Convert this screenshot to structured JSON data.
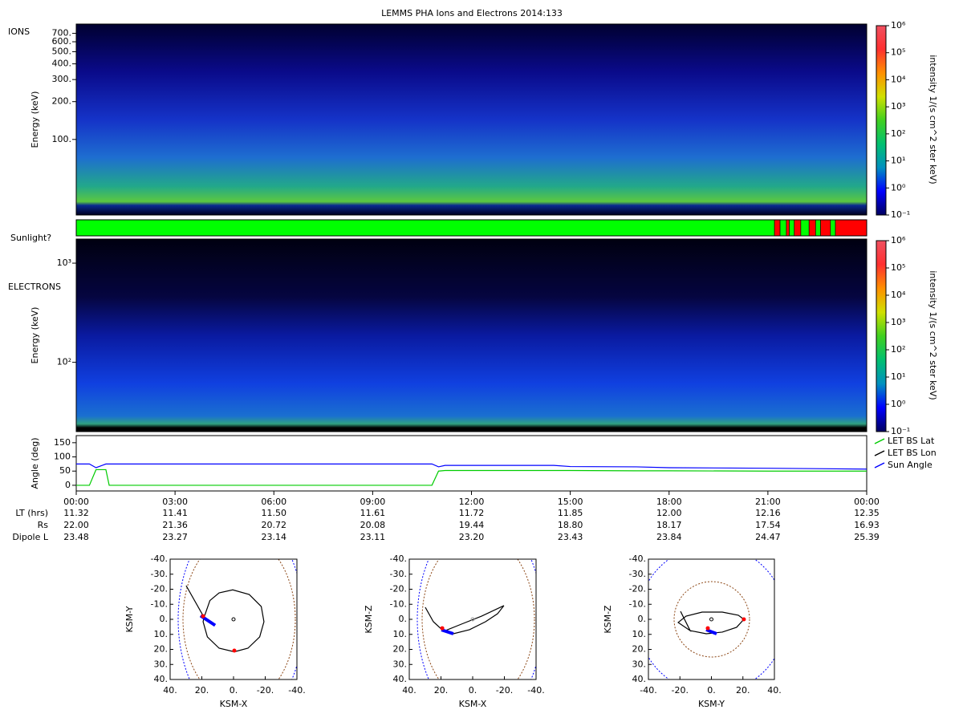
{
  "chart_data": [
    {
      "type": "heatmap",
      "title": "LEMMS PHA Ions and Electrons  2014:133",
      "label": "IONS",
      "ylabel": "Energy (keV)",
      "log_y": true,
      "ylim": [
        25,
        830
      ],
      "yticks": [
        {
          "value": 100,
          "label": "100."
        },
        {
          "value": 200,
          "label": "200."
        },
        {
          "value": 300,
          "label": "300."
        },
        {
          "value": 400,
          "label": "400."
        },
        {
          "value": 500,
          "label": "500."
        },
        {
          "value": 600,
          "label": "600."
        },
        {
          "value": 700,
          "label": "700."
        }
      ],
      "clabel": "intensity 1/(s cm^2 ster keV)",
      "clim": [
        0.1,
        1000000
      ],
      "cticks": [
        {
          "value": 0.1,
          "label": "10⁻¹"
        },
        {
          "value": 1,
          "label": "10⁰"
        },
        {
          "value": 10,
          "label": "10¹"
        },
        {
          "value": 100,
          "label": "10²"
        },
        {
          "value": 1000,
          "label": "10³"
        },
        {
          "value": 10000,
          "label": "10⁴"
        },
        {
          "value": 100000,
          "label": "10⁵"
        },
        {
          "value": 1000000,
          "label": "10⁶"
        }
      ],
      "colormap": [
        "#000060",
        "#0000ff",
        "#0090c0",
        "#00c070",
        "#40d020",
        "#d0e000",
        "#ff9000",
        "#ff3030",
        "#f05060"
      ]
    },
    {
      "type": "timeline",
      "label": "Sunlight?",
      "xlim": [
        0,
        24
      ],
      "segments": [
        {
          "start": 0,
          "end": 21.2,
          "color": "#00ff00"
        },
        {
          "start": 21.2,
          "end": 21.37,
          "color": "#ff0000"
        },
        {
          "start": 21.37,
          "end": 21.56,
          "color": "#00ff00"
        },
        {
          "start": 21.56,
          "end": 21.65,
          "color": "#ff0000"
        },
        {
          "start": 21.65,
          "end": 21.8,
          "color": "#00ff00"
        },
        {
          "start": 21.8,
          "end": 22.0,
          "color": "#ff0000"
        },
        {
          "start": 22.0,
          "end": 22.25,
          "color": "#00ff00"
        },
        {
          "start": 22.25,
          "end": 22.45,
          "color": "#ff0000"
        },
        {
          "start": 22.45,
          "end": 22.6,
          "color": "#00ff00"
        },
        {
          "start": 22.6,
          "end": 22.9,
          "color": "#ff0000"
        },
        {
          "start": 22.9,
          "end": 23.05,
          "color": "#00ff00"
        },
        {
          "start": 23.05,
          "end": 24,
          "color": "#ff0000"
        }
      ]
    },
    {
      "type": "heatmap",
      "label": "ELECTRONS",
      "ylabel": "Energy (keV)",
      "log_y": true,
      "ylim": [
        20,
        1750
      ],
      "yticks": [
        {
          "value": 100,
          "label": "10²"
        },
        {
          "value": 1000,
          "label": "10³"
        }
      ],
      "clabel": "intensity 1/(s cm^2 ster keV)",
      "clim": [
        0.1,
        1000000
      ],
      "cticks": [
        {
          "value": 0.1,
          "label": "10⁻¹"
        },
        {
          "value": 1,
          "label": "10⁰"
        },
        {
          "value": 10,
          "label": "10¹"
        },
        {
          "value": 100,
          "label": "10²"
        },
        {
          "value": 1000,
          "label": "10³"
        },
        {
          "value": 10000,
          "label": "10⁴"
        },
        {
          "value": 100000,
          "label": "10⁵"
        },
        {
          "value": 1000000,
          "label": "10⁶"
        }
      ],
      "colormap": [
        "#000060",
        "#0000ff",
        "#0090c0",
        "#00c070",
        "#40d020",
        "#d0e000",
        "#ff9000",
        "#ff3030",
        "#f05060"
      ]
    },
    {
      "type": "line",
      "ylabel": "Angle (deg)",
      "xlim": [
        0,
        24
      ],
      "ylim": [
        -20,
        175
      ],
      "yticks": [
        0,
        50,
        100,
        150
      ],
      "xticks": [
        {
          "value": 0,
          "label": "00:00"
        },
        {
          "value": 3,
          "label": "03:00"
        },
        {
          "value": 6,
          "label": "06:00"
        },
        {
          "value": 9,
          "label": "09:00"
        },
        {
          "value": 12,
          "label": "12:00"
        },
        {
          "value": 15,
          "label": "15:00"
        },
        {
          "value": 18,
          "label": "18:00"
        },
        {
          "value": 21,
          "label": "21:00"
        },
        {
          "value": 24,
          "label": "00:00"
        }
      ],
      "x": [
        0,
        0.4,
        0.6,
        0.9,
        1.0,
        10.8,
        11.0,
        11.2,
        14.5,
        15,
        17,
        18,
        21,
        24
      ],
      "series": [
        {
          "name": "LET BS Lat",
          "color": "#00cc00",
          "values": [
            0,
            0,
            55,
            55,
            0,
            0,
            50,
            52,
            52,
            52,
            51,
            51,
            50,
            50
          ]
        },
        {
          "name": "LET BS Lon",
          "color": "#000000",
          "values": [
            null,
            null,
            null,
            null,
            null,
            null,
            null,
            null,
            null,
            null,
            null,
            null,
            null,
            null
          ]
        },
        {
          "name": "Sun Angle",
          "color": "#0000ff",
          "values": [
            75,
            75,
            62,
            75,
            75,
            75,
            65,
            70,
            70,
            66,
            65,
            62,
            60,
            57
          ]
        }
      ],
      "ephemeris": [
        {
          "label": "LT (hrs)",
          "values": [
            "11.32",
            "11.41",
            "11.50",
            "11.61",
            "11.72",
            "11.85",
            "12.00",
            "12.16",
            "12.35"
          ]
        },
        {
          "label": "Rs",
          "values": [
            "22.00",
            "21.36",
            "20.72",
            "20.08",
            "19.44",
            "18.80",
            "18.17",
            "17.54",
            "16.93"
          ]
        },
        {
          "label": "Dipole L",
          "values": [
            "23.48",
            "23.27",
            "23.14",
            "23.11",
            "23.20",
            "23.43",
            "23.84",
            "24.47",
            "25.39"
          ]
        }
      ]
    },
    {
      "type": "orbit",
      "xlabel": "KSM-X",
      "ylabel": "KSM-Y",
      "xlim": [
        40,
        -40
      ],
      "ylim": [
        -40,
        40
      ],
      "xticks": [
        {
          "value": 40,
          "label": "40."
        },
        {
          "value": 20,
          "label": "20."
        },
        {
          "value": 0,
          "label": "0."
        },
        {
          "value": -20,
          "label": "-20."
        },
        {
          "value": -40,
          "label": "-40."
        }
      ],
      "yticks": [
        {
          "value": -40,
          "label": "-40."
        },
        {
          "value": -30,
          "label": "-30."
        },
        {
          "value": -20,
          "label": "-20."
        },
        {
          "value": -10,
          "label": "-10."
        },
        {
          "value": 0,
          "label": "0."
        },
        {
          "value": 10,
          "label": "10."
        },
        {
          "value": 20,
          "label": "20."
        },
        {
          "value": 30,
          "label": "30."
        },
        {
          "value": 40,
          "label": "40."
        }
      ],
      "series": [
        {
          "mode": "line",
          "color": "#000000",
          "x": [
            29.9,
            18.6,
            14.9,
            9.1,
            0.5,
            -9.9,
            -17.5,
            -19.2,
            -16.5,
            -9.1,
            -0.5,
            9.1,
            16.5,
            19.2,
            18.6
          ],
          "y": [
            -22.4,
            -1.3,
            -12.5,
            -17.6,
            -19.6,
            -16.5,
            -8.5,
            1.6,
            11.7,
            19.2,
            21.6,
            19.2,
            11.7,
            1.6,
            -1.3
          ]
        },
        {
          "mode": "thick",
          "color": "#0000ff",
          "x": [
            20.8,
            11.6
          ],
          "y": [
            -2.4,
            4.0
          ]
        },
        {
          "mode": "points",
          "color": "#ff0000",
          "x": [
            19.2,
            -0.5
          ],
          "y": [
            -2.1,
            20.8
          ]
        },
        {
          "mode": "circle",
          "color": "#000000",
          "x": [
            0
          ],
          "y": [
            0
          ]
        }
      ]
    },
    {
      "type": "orbit",
      "xlabel": "KSM-X",
      "ylabel": "KSM-Z",
      "xlim": [
        40,
        -40
      ],
      "ylim": [
        -40,
        40
      ],
      "xticks": [
        {
          "value": 40,
          "label": "40."
        },
        {
          "value": 20,
          "label": "20."
        },
        {
          "value": 0,
          "label": "0."
        },
        {
          "value": -20,
          "label": "-20."
        },
        {
          "value": -40,
          "label": "-40."
        }
      ],
      "yticks": [
        {
          "value": -40,
          "label": "-40."
        },
        {
          "value": -30,
          "label": "-30."
        },
        {
          "value": -20,
          "label": "-20."
        },
        {
          "value": -10,
          "label": "-10."
        },
        {
          "value": 0,
          "label": "0."
        },
        {
          "value": 10,
          "label": "10."
        },
        {
          "value": 20,
          "label": "20."
        },
        {
          "value": 30,
          "label": "30."
        },
        {
          "value": 40,
          "label": "40."
        }
      ],
      "series": [
        {
          "mode": "line",
          "color": "#000000",
          "x": [
            29.9,
            24.8,
            18.7,
            12.2,
            2.0,
            -8.1,
            -15.7,
            -19.7,
            -5.6,
            7.1,
            17.2
          ],
          "y": [
            -8.0,
            1.6,
            7.5,
            9.6,
            6.9,
            1.6,
            -3.7,
            -9.1,
            -2.1,
            3.2,
            7.5
          ]
        },
        {
          "mode": "thick",
          "color": "#0000ff",
          "x": [
            19.7,
            12.2
          ],
          "y": [
            7.0,
            9.6
          ]
        },
        {
          "mode": "points",
          "color": "#ff0000",
          "x": [
            19.2
          ],
          "y": [
            5.9
          ]
        },
        {
          "mode": "circle",
          "color": "#999999",
          "x": [
            0
          ],
          "y": [
            0
          ]
        }
      ]
    },
    {
      "type": "orbit",
      "xlabel": "KSM-Y",
      "ylabel": "KSM-Z",
      "xlim": [
        -40,
        40
      ],
      "ylim": [
        -40,
        40
      ],
      "xticks": [
        {
          "value": -40,
          "label": "-40."
        },
        {
          "value": -20,
          "label": "-20."
        },
        {
          "value": 0,
          "label": "0."
        },
        {
          "value": 20,
          "label": "20."
        },
        {
          "value": 40,
          "label": "40."
        }
      ],
      "yticks": [
        {
          "value": -40,
          "label": "-40."
        },
        {
          "value": -30,
          "label": "-30."
        },
        {
          "value": -20,
          "label": "-20."
        },
        {
          "value": -10,
          "label": "-10."
        },
        {
          "value": 0,
          "label": "0."
        },
        {
          "value": 10,
          "label": "10."
        },
        {
          "value": 20,
          "label": "20."
        },
        {
          "value": 30,
          "label": "30."
        },
        {
          "value": 40,
          "label": "40."
        }
      ],
      "series": [
        {
          "mode": "line",
          "color": "#000000",
          "x": [
            -19.6,
            -13.5,
            -21.1,
            -16.1,
            -5.9,
            6.9,
            17.1,
            20.6,
            16.0,
            6.9,
            -3.3,
            -13.5
          ],
          "y": [
            -5.3,
            7.5,
            2.1,
            -2.1,
            -4.8,
            -4.8,
            -2.7,
            0,
            5.3,
            8.5,
            9.6,
            7.5
          ]
        },
        {
          "mode": "thick",
          "color": "#0000ff",
          "x": [
            -3.3,
            3.3
          ],
          "y": [
            6.9,
            9.6
          ]
        },
        {
          "mode": "points",
          "color": "#ff0000",
          "x": [
            -2.3,
            20.6
          ],
          "y": [
            5.9,
            0
          ]
        },
        {
          "mode": "circle",
          "color": "#000000",
          "x": [
            0
          ],
          "y": [
            0
          ]
        }
      ]
    }
  ]
}
